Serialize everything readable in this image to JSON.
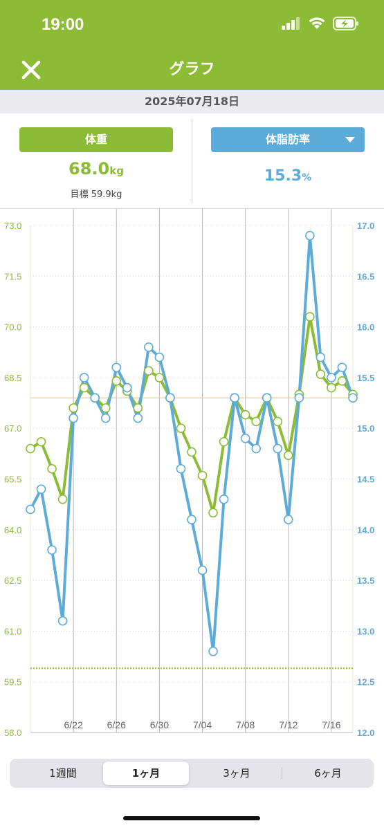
{
  "status_bar": {
    "time": "19:00",
    "icons": [
      "signal-icon",
      "wifi-icon",
      "battery-charging-icon"
    ]
  },
  "nav": {
    "title": "グラフ",
    "close_icon": "close-icon"
  },
  "date": "2025年07月18日",
  "metrics": {
    "weight": {
      "label": "体重",
      "value": "68.0",
      "unit": "kg",
      "target": "目標 59.9kg"
    },
    "fat": {
      "label": "体脂肪率",
      "value": "15.3",
      "unit": "%",
      "dropdown_icon": "caret-down-icon"
    }
  },
  "segments": {
    "items": [
      "1週間",
      "1ヶ月",
      "3ヶ月",
      "6ヶ月"
    ],
    "selected": 1
  },
  "colors": {
    "brand_green": "#8cbc35",
    "accent_blue": "#5cabd9"
  },
  "chart_data": {
    "type": "line",
    "x_tick_labels": [
      "6/22",
      "6/26",
      "6/30",
      "7/04",
      "7/08",
      "7/12",
      "7/16"
    ],
    "x_tick_indices": [
      4,
      8,
      12,
      16,
      20,
      24,
      28
    ],
    "left_axis": {
      "ylim": [
        58.0,
        73.0
      ],
      "ticks": [
        "58.0",
        "59.5",
        "61.0",
        "62.5",
        "64.0",
        "65.5",
        "67.0",
        "68.5",
        "70.0",
        "71.5",
        "73.0"
      ]
    },
    "right_axis": {
      "ylim": [
        12.0,
        17.0
      ],
      "ticks": [
        "12.0",
        "12.5",
        "13.0",
        "13.5",
        "14.0",
        "14.5",
        "15.0",
        "15.5",
        "16.0",
        "16.5",
        "17.0"
      ]
    },
    "target_weight": 59.9,
    "target_fat": 15.3,
    "series": [
      {
        "axis": "left",
        "color": "#8cbc35",
        "values": [
          66.4,
          66.6,
          65.8,
          64.9,
          67.6,
          68.2,
          67.9,
          67.6,
          68.4,
          68.1,
          67.6,
          68.7,
          68.5,
          67.9,
          67.0,
          66.3,
          65.6,
          64.5,
          66.6,
          67.9,
          67.4,
          67.2,
          67.9,
          67.2,
          66.2,
          68.0,
          70.3,
          68.6,
          68.2,
          68.4,
          68.0
        ]
      },
      {
        "axis": "right",
        "color": "#5cabd9",
        "values": [
          14.2,
          14.4,
          13.8,
          13.1,
          15.1,
          15.5,
          15.3,
          15.1,
          15.6,
          15.4,
          15.1,
          15.8,
          15.7,
          15.3,
          14.6,
          14.1,
          13.6,
          12.8,
          14.3,
          15.3,
          14.9,
          14.8,
          15.3,
          14.8,
          14.1,
          15.3,
          16.9,
          15.7,
          15.5,
          15.6,
          15.3
        ]
      }
    ]
  }
}
